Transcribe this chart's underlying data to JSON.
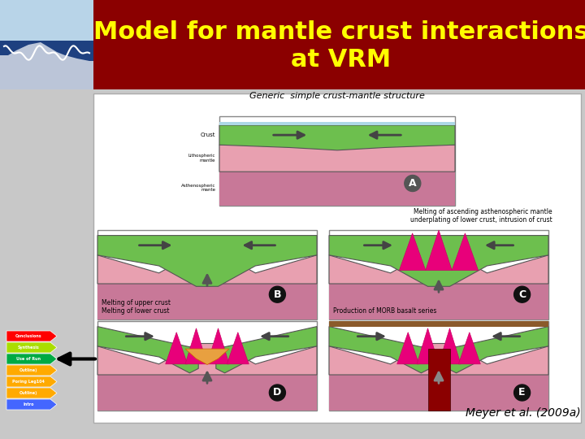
{
  "title_line1": "Model for mantle crust interactions",
  "title_line2": "at VRM",
  "title_color": "#FFFF00",
  "header_bg": "#8B0000",
  "bg_color": "#C8C8C8",
  "diagram_bg": "#FFFFFF",
  "citation": "Meyer et al. (2009a)",
  "nav_labels": [
    "Conclusions",
    "Synthesis",
    "Use of Run",
    "Outline)",
    "Poring Leg104",
    "Outline)",
    "Intro"
  ],
  "nav_colors": [
    "#FF0000",
    "#AADD00",
    "#00AA44",
    "#FFAA00",
    "#FFAA00",
    "#FFAA00",
    "#4466FF"
  ],
  "diagram_image_placeholder": true
}
